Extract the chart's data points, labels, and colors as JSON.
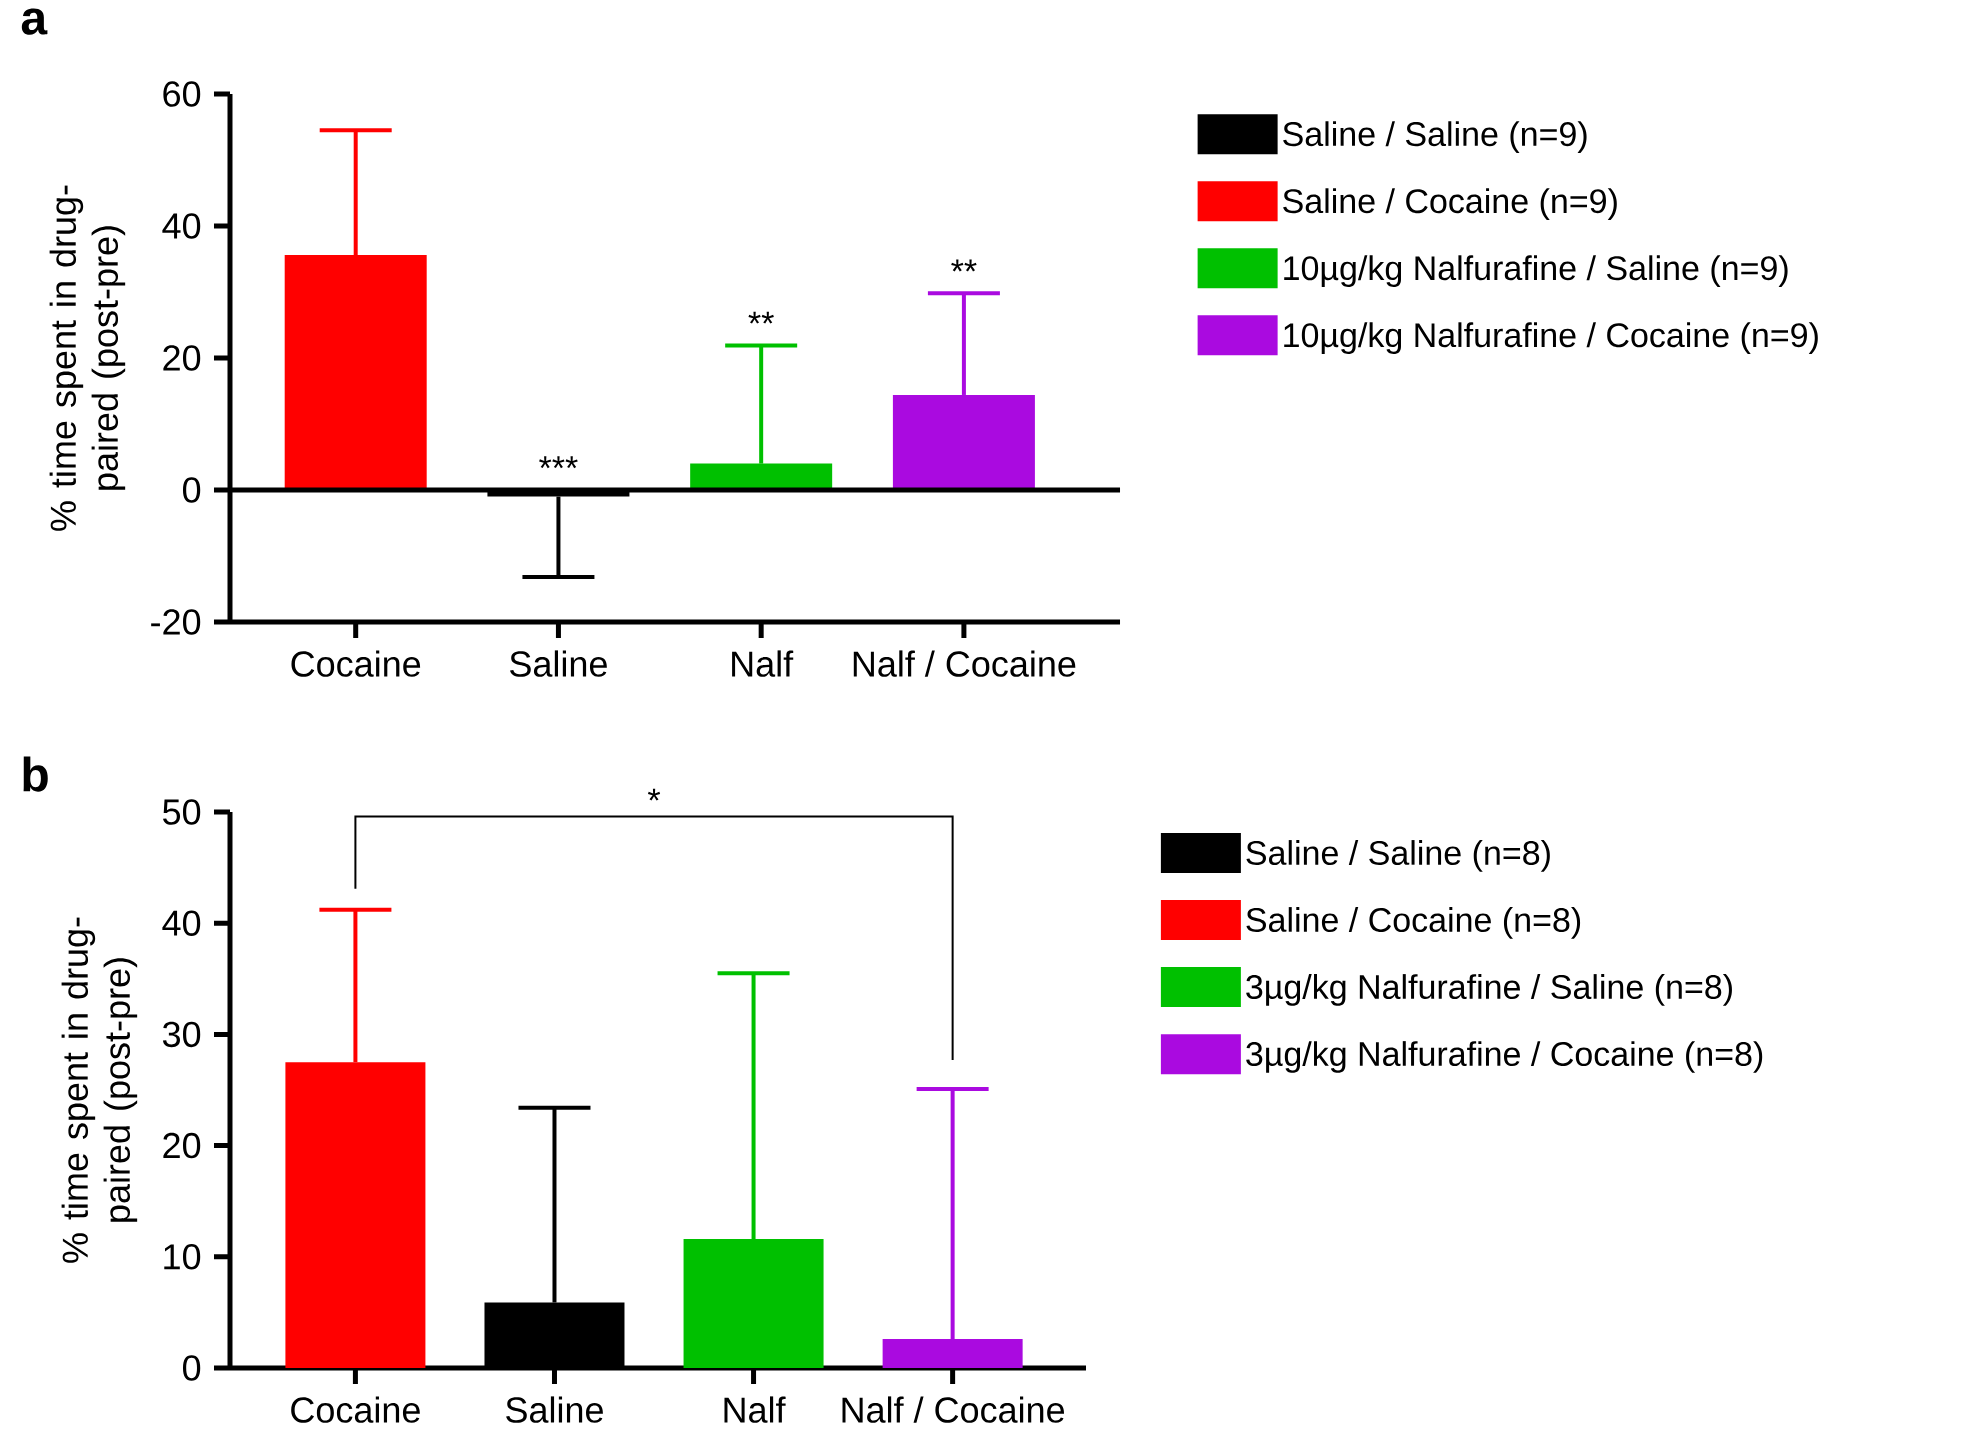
{
  "chart_data": [
    {
      "type": "bar",
      "title": "a",
      "ylabel": "% time spent in drug-paired (post-pre)",
      "categories": [
        "Cocaine",
        "Saline",
        "Nalf",
        "Nalf / Cocaine"
      ],
      "ylim": [
        -20,
        60
      ],
      "yticks": [
        -20,
        0,
        20,
        40,
        60
      ],
      "legend": "right",
      "series": [
        {
          "name": "Saline / Saline (n=9)",
          "color": "#000000",
          "values": [
            null,
            -1,
            null,
            null
          ],
          "errors": [
            null,
            [
              -13.2,
              -1
            ],
            null,
            null
          ]
        },
        {
          "name": "Saline / Cocaine (n=9)",
          "color": "#ff0000",
          "values": [
            35.6,
            null,
            null,
            null
          ],
          "errors": [
            [
              35.6,
              54.5
            ],
            null,
            null,
            null
          ]
        },
        {
          "name": "10µg/kg Nalfurafine / Saline (n=9)",
          "color": "#00c000",
          "values": [
            null,
            null,
            4,
            null
          ],
          "errors": [
            null,
            null,
            [
              4,
              21.9
            ],
            null
          ]
        },
        {
          "name": "10µg/kg Nalfurafine / Cocaine (n=9)",
          "color": "#aa0ae0",
          "values": [
            null,
            null,
            null,
            14.4
          ],
          "errors": [
            null,
            null,
            null,
            [
              14.4,
              29.8
            ]
          ]
        }
      ],
      "ref_lines": [
        {
          "axis": "y",
          "value": 0
        }
      ],
      "annotations": [
        {
          "text": "***",
          "x": "Saline",
          "y": -1
        },
        {
          "text": "**",
          "x": "Nalf",
          "y": 21.9
        },
        {
          "text": "**",
          "x": "Nalf / Cocaine",
          "y": 29.8
        }
      ]
    },
    {
      "type": "bar",
      "title": "b",
      "ylabel": "% time spent in drug-paired (post-pre)",
      "categories": [
        "Cocaine",
        "Saline",
        "Nalf",
        "Nalf / Cocaine"
      ],
      "ylim": [
        0,
        50
      ],
      "yticks": [
        0,
        10,
        20,
        30,
        40,
        50
      ],
      "legend": "right",
      "series": [
        {
          "name": "Saline / Saline (n=8)",
          "color": "#000000",
          "values": [
            null,
            5.9,
            null,
            null
          ],
          "errors": [
            null,
            [
              5.9,
              23.4
            ],
            null,
            null
          ]
        },
        {
          "name": "Saline / Cocaine (n=8)",
          "color": "#ff0000",
          "values": [
            27.5,
            null,
            null,
            null
          ],
          "errors": [
            [
              27.5,
              41.2
            ],
            null,
            null,
            null
          ]
        },
        {
          "name": "3µg/kg Nalfurafine / Saline (n=8)",
          "color": "#00c000",
          "values": [
            null,
            null,
            11.6,
            null
          ],
          "errors": [
            null,
            null,
            [
              11.6,
              35.5
            ],
            null
          ]
        },
        {
          "name": "3µg/kg Nalfurafine / Cocaine (n=8)",
          "color": "#aa0ae0",
          "values": [
            null,
            null,
            null,
            2.6
          ],
          "errors": [
            null,
            null,
            null,
            [
              2.6,
              25.1
            ]
          ]
        }
      ],
      "annotations": [
        "*"
      ]
    }
  ]
}
